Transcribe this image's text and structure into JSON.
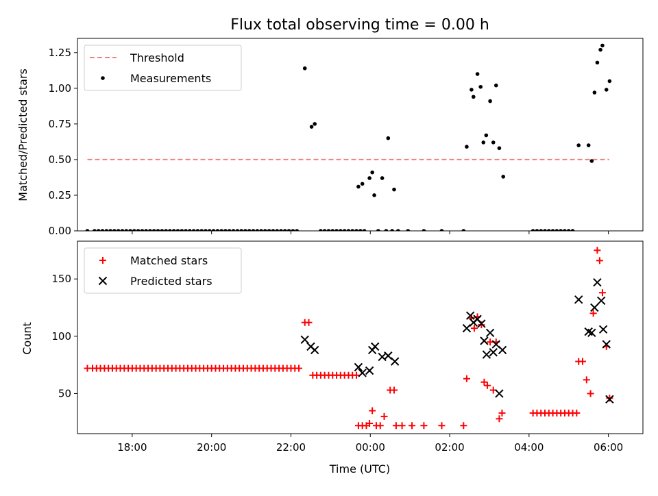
{
  "title": "Flux total observing time = 0.00 h",
  "chart_data": [
    {
      "type": "scatter",
      "panel": "top",
      "ylabel": "Matched/Predicted stars",
      "xlabel": "",
      "xlim": [
        16.62,
        30.87
      ],
      "ylim": [
        0,
        1.35
      ],
      "x_ticks": [
        18,
        20,
        22,
        24,
        26,
        28,
        30
      ],
      "x_tick_labels": [],
      "y_ticks": [
        0,
        0.25,
        0.5,
        0.75,
        1.0,
        1.25
      ],
      "y_tick_labels": [
        "0.00",
        "0.25",
        "0.50",
        "0.75",
        "1.00",
        "1.25"
      ],
      "legend_position": "top-left",
      "series": [
        {
          "name": "Threshold",
          "kind": "dashed-line",
          "color": "#f08080",
          "x": [
            16.87,
            30.02
          ],
          "y": [
            0.5,
            0.5
          ]
        },
        {
          "name": "Measurements",
          "kind": "dots",
          "color": "#000000",
          "points": [
            [
              16.87,
              0
            ],
            [
              17.05,
              0
            ],
            [
              17.15,
              0
            ],
            [
              17.25,
              0
            ],
            [
              17.35,
              0
            ],
            [
              17.45,
              0
            ],
            [
              17.55,
              0
            ],
            [
              17.65,
              0
            ],
            [
              17.75,
              0
            ],
            [
              17.85,
              0
            ],
            [
              17.95,
              0
            ],
            [
              18.05,
              0
            ],
            [
              18.15,
              0
            ],
            [
              18.25,
              0
            ],
            [
              18.35,
              0
            ],
            [
              18.45,
              0
            ],
            [
              18.55,
              0
            ],
            [
              18.65,
              0
            ],
            [
              18.75,
              0
            ],
            [
              18.85,
              0
            ],
            [
              18.95,
              0
            ],
            [
              19.05,
              0
            ],
            [
              19.15,
              0
            ],
            [
              19.25,
              0
            ],
            [
              19.35,
              0
            ],
            [
              19.45,
              0
            ],
            [
              19.55,
              0
            ],
            [
              19.65,
              0
            ],
            [
              19.75,
              0
            ],
            [
              19.85,
              0
            ],
            [
              19.95,
              0
            ],
            [
              20.05,
              0
            ],
            [
              20.15,
              0
            ],
            [
              20.25,
              0
            ],
            [
              20.35,
              0
            ],
            [
              20.45,
              0
            ],
            [
              20.55,
              0
            ],
            [
              20.65,
              0
            ],
            [
              20.75,
              0
            ],
            [
              20.85,
              0
            ],
            [
              20.95,
              0
            ],
            [
              21.05,
              0
            ],
            [
              21.15,
              0
            ],
            [
              21.25,
              0
            ],
            [
              21.35,
              0
            ],
            [
              21.45,
              0
            ],
            [
              21.55,
              0
            ],
            [
              21.65,
              0
            ],
            [
              21.75,
              0
            ],
            [
              21.85,
              0
            ],
            [
              21.95,
              0
            ],
            [
              22.05,
              0
            ],
            [
              22.15,
              0
            ],
            [
              22.35,
              1.14
            ],
            [
              22.52,
              0.73
            ],
            [
              22.6,
              0.75
            ],
            [
              22.75,
              0
            ],
            [
              22.85,
              0
            ],
            [
              22.95,
              0
            ],
            [
              23.05,
              0
            ],
            [
              23.15,
              0
            ],
            [
              23.25,
              0
            ],
            [
              23.35,
              0
            ],
            [
              23.45,
              0
            ],
            [
              23.55,
              0
            ],
            [
              23.65,
              0
            ],
            [
              23.75,
              0
            ],
            [
              23.85,
              0
            ],
            [
              23.7,
              0.31
            ],
            [
              23.8,
              0.33
            ],
            [
              23.98,
              0.37
            ],
            [
              24.05,
              0.41
            ],
            [
              24.1,
              0.25
            ],
            [
              24.3,
              0.37
            ],
            [
              24.45,
              0.65
            ],
            [
              24.6,
              0.29
            ],
            [
              24.2,
              0
            ],
            [
              24.4,
              0
            ],
            [
              24.55,
              0
            ],
            [
              24.7,
              0
            ],
            [
              24.95,
              0
            ],
            [
              25.35,
              0
            ],
            [
              25.8,
              0
            ],
            [
              26.35,
              0
            ],
            [
              26.43,
              0.59
            ],
            [
              26.55,
              0.99
            ],
            [
              26.6,
              0.94
            ],
            [
              26.7,
              1.1
            ],
            [
              26.78,
              1.01
            ],
            [
              26.85,
              0.62
            ],
            [
              26.92,
              0.67
            ],
            [
              27.02,
              0.91
            ],
            [
              27.1,
              0.62
            ],
            [
              27.17,
              1.02
            ],
            [
              27.25,
              0.58
            ],
            [
              27.35,
              0.38
            ],
            [
              28.1,
              0
            ],
            [
              28.2,
              0
            ],
            [
              28.3,
              0
            ],
            [
              28.4,
              0
            ],
            [
              28.5,
              0
            ],
            [
              28.6,
              0
            ],
            [
              28.7,
              0
            ],
            [
              28.8,
              0
            ],
            [
              28.9,
              0
            ],
            [
              29.0,
              0
            ],
            [
              29.1,
              0
            ],
            [
              29.25,
              0.6
            ],
            [
              29.5,
              0.6
            ],
            [
              29.58,
              0.49
            ],
            [
              29.65,
              0.97
            ],
            [
              29.72,
              1.18
            ],
            [
              29.8,
              1.27
            ],
            [
              29.85,
              1.3
            ],
            [
              29.95,
              0.99
            ],
            [
              30.03,
              1.05
            ]
          ]
        }
      ]
    },
    {
      "type": "scatter",
      "panel": "bottom",
      "ylabel": "Count",
      "xlabel": "Time (UTC)",
      "xlim": [
        16.62,
        30.87
      ],
      "ylim": [
        15,
        183
      ],
      "x_ticks": [
        18,
        20,
        22,
        24,
        26,
        28,
        30
      ],
      "x_tick_labels": [
        "18:00",
        "20:00",
        "22:00",
        "00:00",
        "02:00",
        "04:00",
        "06:00"
      ],
      "y_ticks": [
        50,
        100,
        150
      ],
      "y_tick_labels": [
        "50",
        "100",
        "150"
      ],
      "legend_position": "top-left",
      "series": [
        {
          "name": "Matched stars",
          "kind": "plus",
          "color": "#ff0000",
          "points": [
            [
              16.87,
              72
            ],
            [
              17.0,
              72
            ],
            [
              17.1,
              72
            ],
            [
              17.2,
              72
            ],
            [
              17.3,
              72
            ],
            [
              17.4,
              72
            ],
            [
              17.5,
              72
            ],
            [
              17.6,
              72
            ],
            [
              17.7,
              72
            ],
            [
              17.8,
              72
            ],
            [
              17.9,
              72
            ],
            [
              18.0,
              72
            ],
            [
              18.1,
              72
            ],
            [
              18.2,
              72
            ],
            [
              18.3,
              72
            ],
            [
              18.4,
              72
            ],
            [
              18.5,
              72
            ],
            [
              18.6,
              72
            ],
            [
              18.7,
              72
            ],
            [
              18.8,
              72
            ],
            [
              18.9,
              72
            ],
            [
              19.0,
              72
            ],
            [
              19.1,
              72
            ],
            [
              19.2,
              72
            ],
            [
              19.3,
              72
            ],
            [
              19.4,
              72
            ],
            [
              19.5,
              72
            ],
            [
              19.6,
              72
            ],
            [
              19.7,
              72
            ],
            [
              19.8,
              72
            ],
            [
              19.9,
              72
            ],
            [
              20.0,
              72
            ],
            [
              20.1,
              72
            ],
            [
              20.2,
              72
            ],
            [
              20.3,
              72
            ],
            [
              20.4,
              72
            ],
            [
              20.5,
              72
            ],
            [
              20.6,
              72
            ],
            [
              20.7,
              72
            ],
            [
              20.8,
              72
            ],
            [
              20.9,
              72
            ],
            [
              21.0,
              72
            ],
            [
              21.1,
              72
            ],
            [
              21.2,
              72
            ],
            [
              21.3,
              72
            ],
            [
              21.4,
              72
            ],
            [
              21.5,
              72
            ],
            [
              21.6,
              72
            ],
            [
              21.7,
              72
            ],
            [
              21.8,
              72
            ],
            [
              21.9,
              72
            ],
            [
              22.0,
              72
            ],
            [
              22.1,
              72
            ],
            [
              22.2,
              72
            ],
            [
              22.35,
              112
            ],
            [
              22.45,
              112
            ],
            [
              22.55,
              66
            ],
            [
              22.65,
              66
            ],
            [
              22.75,
              66
            ],
            [
              22.85,
              66
            ],
            [
              22.95,
              66
            ],
            [
              23.05,
              66
            ],
            [
              23.15,
              66
            ],
            [
              23.25,
              66
            ],
            [
              23.35,
              66
            ],
            [
              23.45,
              66
            ],
            [
              23.55,
              66
            ],
            [
              23.65,
              66
            ],
            [
              23.7,
              22
            ],
            [
              23.8,
              22
            ],
            [
              23.9,
              22
            ],
            [
              23.98,
              24
            ],
            [
              24.05,
              35
            ],
            [
              24.15,
              22
            ],
            [
              24.25,
              22
            ],
            [
              24.35,
              30
            ],
            [
              24.5,
              53
            ],
            [
              24.6,
              53
            ],
            [
              24.65,
              22
            ],
            [
              24.8,
              22
            ],
            [
              25.05,
              22
            ],
            [
              25.35,
              22
            ],
            [
              25.8,
              22
            ],
            [
              26.35,
              22
            ],
            [
              26.43,
              63
            ],
            [
              26.55,
              116
            ],
            [
              26.62,
              107
            ],
            [
              26.7,
              117
            ],
            [
              26.8,
              110
            ],
            [
              26.87,
              60
            ],
            [
              26.95,
              57
            ],
            [
              27.02,
              95
            ],
            [
              27.1,
              53
            ],
            [
              27.17,
              95
            ],
            [
              27.25,
              28
            ],
            [
              27.32,
              33
            ],
            [
              28.1,
              33
            ],
            [
              28.2,
              33
            ],
            [
              28.3,
              33
            ],
            [
              28.4,
              33
            ],
            [
              28.5,
              33
            ],
            [
              28.6,
              33
            ],
            [
              28.7,
              33
            ],
            [
              28.8,
              33
            ],
            [
              28.9,
              33
            ],
            [
              29.0,
              33
            ],
            [
              29.1,
              33
            ],
            [
              29.2,
              33
            ],
            [
              29.25,
              78
            ],
            [
              29.35,
              78
            ],
            [
              29.45,
              62
            ],
            [
              29.55,
              50
            ],
            [
              29.62,
              120
            ],
            [
              29.72,
              175
            ],
            [
              29.78,
              166
            ],
            [
              29.85,
              138
            ],
            [
              29.95,
              91
            ],
            [
              30.03,
              46
            ]
          ]
        },
        {
          "name": "Predicted stars",
          "kind": "x",
          "color": "#000000",
          "points": [
            [
              22.35,
              97
            ],
            [
              22.5,
              91
            ],
            [
              22.6,
              88
            ],
            [
              23.7,
              73
            ],
            [
              23.8,
              68
            ],
            [
              23.98,
              70
            ],
            [
              24.05,
              88
            ],
            [
              24.12,
              91
            ],
            [
              24.3,
              82
            ],
            [
              24.45,
              83
            ],
            [
              24.62,
              78
            ],
            [
              26.43,
              107
            ],
            [
              26.52,
              118
            ],
            [
              26.6,
              112
            ],
            [
              26.7,
              115
            ],
            [
              26.8,
              111
            ],
            [
              26.87,
              96
            ],
            [
              26.93,
              84
            ],
            [
              27.02,
              103
            ],
            [
              27.1,
              86
            ],
            [
              27.17,
              93
            ],
            [
              27.25,
              50
            ],
            [
              27.33,
              88
            ],
            [
              29.25,
              132
            ],
            [
              29.5,
              104
            ],
            [
              29.58,
              103
            ],
            [
              29.65,
              125
            ],
            [
              29.72,
              147
            ],
            [
              29.82,
              131
            ],
            [
              29.87,
              106
            ],
            [
              29.95,
              93
            ],
            [
              30.03,
              45
            ]
          ]
        }
      ]
    }
  ]
}
